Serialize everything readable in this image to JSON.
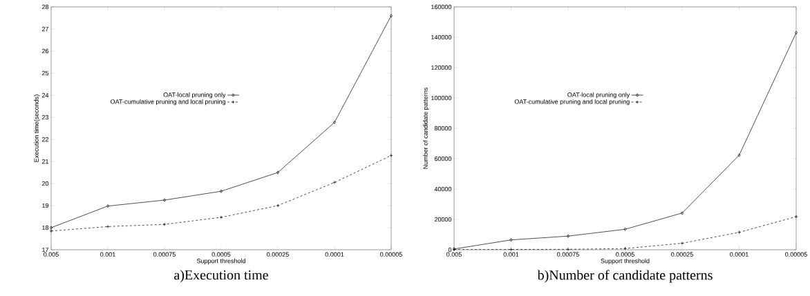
{
  "chart_data": [
    {
      "type": "line",
      "title": "a)Execution time",
      "xlabel": "Support threshold",
      "ylabel": "Execution time(seconds)",
      "categories": [
        "0.005",
        "0.001",
        "0.00075",
        "0.0005",
        "0.00025",
        "0.0001",
        "0.00005"
      ],
      "ylim": [
        17,
        28
      ],
      "yticks": [
        17,
        18,
        19,
        20,
        21,
        22,
        23,
        24,
        25,
        26,
        27,
        28
      ],
      "grid": false,
      "legend": "top left",
      "series": [
        {
          "name": "OAT-local pruning only",
          "color": "#000000",
          "marker": "diamond",
          "line_style": "solid",
          "values": [
            18.0,
            18.98,
            19.25,
            19.65,
            20.5,
            22.77,
            27.6
          ]
        },
        {
          "name": "OAT-cumulative pruning and local pruning",
          "color": "#000000",
          "marker": "cross",
          "line_style": "dashed",
          "values": [
            17.85,
            18.05,
            18.15,
            18.47,
            19.0,
            20.05,
            21.27
          ]
        }
      ]
    },
    {
      "type": "line",
      "title": "b)Number of candidate patterns",
      "xlabel": "Support threshold",
      "ylabel": "Number of candidate patterns",
      "categories": [
        "0.005",
        "0.001",
        "0.00075",
        "0.0005",
        "0.00025",
        "0.0001",
        "0.00005"
      ],
      "ylim": [
        0,
        160000
      ],
      "yticks": [
        0,
        20000,
        40000,
        60000,
        80000,
        100000,
        120000,
        140000,
        160000
      ],
      "grid": false,
      "legend": "top left",
      "series": [
        {
          "name": "OAT-local pruning only",
          "color": "#000000",
          "marker": "diamond",
          "line_style": "solid",
          "values": [
            500,
            6500,
            9000,
            13500,
            24200,
            62300,
            143000
          ]
        },
        {
          "name": "OAT-cumulative pruning and local pruning",
          "color": "#000000",
          "marker": "cross",
          "line_style": "dashed",
          "values": [
            100,
            200,
            300,
            800,
            4300,
            11500,
            21800
          ]
        }
      ]
    }
  ]
}
